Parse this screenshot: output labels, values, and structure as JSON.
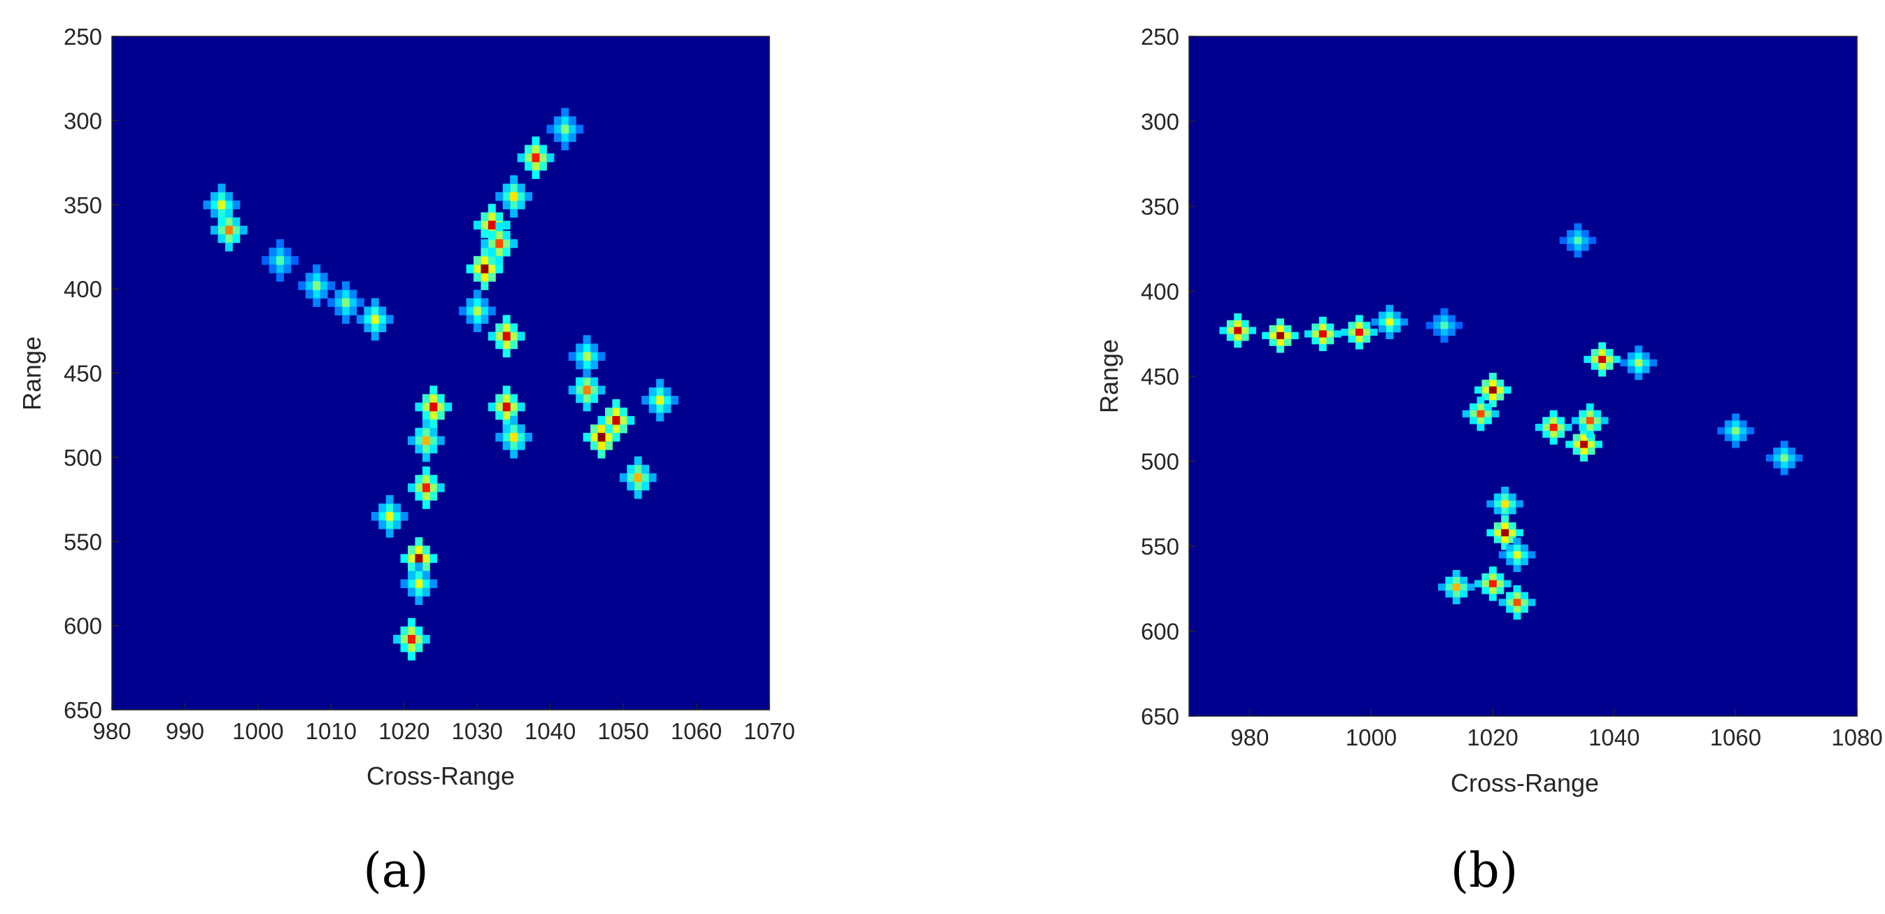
{
  "colors": {
    "background": "#00008f",
    "axis": "#262626",
    "colormap": "jet"
  },
  "chart_data": [
    {
      "type": "heatmap",
      "panel_label": "(a)",
      "xlabel": "Cross-Range",
      "ylabel": "Range",
      "xlim": [
        980,
        1070
      ],
      "ylim": [
        250,
        650
      ],
      "y_reversed": true,
      "xticks": [
        "980",
        "990",
        "1000",
        "1010",
        "1020",
        "1030",
        "1040",
        "1050",
        "1060",
        "1070"
      ],
      "yticks": [
        "250",
        "300",
        "350",
        "400",
        "450",
        "500",
        "550",
        "600",
        "650"
      ],
      "grid": false,
      "features": [
        {
          "x": 995,
          "y": 350,
          "v": 0.6
        },
        {
          "x": 996,
          "y": 365,
          "v": 0.75
        },
        {
          "x": 1003,
          "y": 383,
          "v": 0.45
        },
        {
          "x": 1008,
          "y": 398,
          "v": 0.5
        },
        {
          "x": 1012,
          "y": 408,
          "v": 0.5
        },
        {
          "x": 1016,
          "y": 418,
          "v": 0.6
        },
        {
          "x": 1031,
          "y": 388,
          "v": 0.98
        },
        {
          "x": 1032,
          "y": 362,
          "v": 0.9
        },
        {
          "x": 1033,
          "y": 373,
          "v": 0.8
        },
        {
          "x": 1035,
          "y": 345,
          "v": 0.65
        },
        {
          "x": 1038,
          "y": 322,
          "v": 0.85
        },
        {
          "x": 1042,
          "y": 305,
          "v": 0.5
        },
        {
          "x": 1034,
          "y": 428,
          "v": 0.9
        },
        {
          "x": 1030,
          "y": 413,
          "v": 0.55
        },
        {
          "x": 1024,
          "y": 470,
          "v": 0.9
        },
        {
          "x": 1023,
          "y": 490,
          "v": 0.7
        },
        {
          "x": 1023,
          "y": 518,
          "v": 0.85
        },
        {
          "x": 1022,
          "y": 560,
          "v": 0.97
        },
        {
          "x": 1022,
          "y": 575,
          "v": 0.6
        },
        {
          "x": 1021,
          "y": 608,
          "v": 0.85
        },
        {
          "x": 1018,
          "y": 535,
          "v": 0.6
        },
        {
          "x": 1034,
          "y": 470,
          "v": 0.9
        },
        {
          "x": 1035,
          "y": 488,
          "v": 0.65
        },
        {
          "x": 1045,
          "y": 460,
          "v": 0.75
        },
        {
          "x": 1045,
          "y": 440,
          "v": 0.55
        },
        {
          "x": 1047,
          "y": 488,
          "v": 0.99
        },
        {
          "x": 1049,
          "y": 478,
          "v": 0.92
        },
        {
          "x": 1052,
          "y": 512,
          "v": 0.7
        },
        {
          "x": 1055,
          "y": 466,
          "v": 0.6
        }
      ]
    },
    {
      "type": "heatmap",
      "panel_label": "(b)",
      "xlabel": "Cross-Range",
      "ylabel": "Range",
      "xlim": [
        970,
        1080
      ],
      "ylim": [
        250,
        650
      ],
      "y_reversed": true,
      "xticks": [
        "980",
        "1000",
        "1020",
        "1040",
        "1060",
        "1080"
      ],
      "yticks": [
        "250",
        "300",
        "350",
        "400",
        "450",
        "500",
        "550",
        "600",
        "650"
      ],
      "grid": false,
      "features": [
        {
          "x": 978,
          "y": 423,
          "v": 0.92
        },
        {
          "x": 985,
          "y": 426,
          "v": 0.97
        },
        {
          "x": 992,
          "y": 425,
          "v": 0.9
        },
        {
          "x": 998,
          "y": 424,
          "v": 0.88
        },
        {
          "x": 1003,
          "y": 418,
          "v": 0.6
        },
        {
          "x": 1012,
          "y": 420,
          "v": 0.45
        },
        {
          "x": 1020,
          "y": 458,
          "v": 0.97
        },
        {
          "x": 1018,
          "y": 472,
          "v": 0.8
        },
        {
          "x": 1030,
          "y": 480,
          "v": 0.85
        },
        {
          "x": 1035,
          "y": 490,
          "v": 0.95
        },
        {
          "x": 1036,
          "y": 476,
          "v": 0.8
        },
        {
          "x": 1038,
          "y": 440,
          "v": 0.92
        },
        {
          "x": 1044,
          "y": 442,
          "v": 0.55
        },
        {
          "x": 1022,
          "y": 525,
          "v": 0.65
        },
        {
          "x": 1022,
          "y": 542,
          "v": 0.97
        },
        {
          "x": 1024,
          "y": 555,
          "v": 0.6
        },
        {
          "x": 1020,
          "y": 572,
          "v": 0.85
        },
        {
          "x": 1014,
          "y": 574,
          "v": 0.7
        },
        {
          "x": 1024,
          "y": 583,
          "v": 0.8
        },
        {
          "x": 1060,
          "y": 482,
          "v": 0.5
        },
        {
          "x": 1068,
          "y": 498,
          "v": 0.5
        },
        {
          "x": 1034,
          "y": 370,
          "v": 0.45
        }
      ]
    }
  ]
}
